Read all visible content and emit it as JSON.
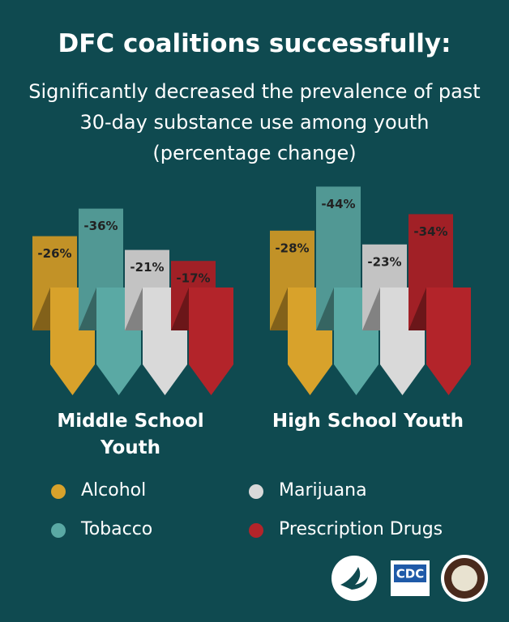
{
  "chart_data": {
    "type": "bar",
    "title": "DFC coalitions successfully:",
    "subtitle": "Significantly decreased the prevalence of past 30-day substance use among youth (percentage change)",
    "categories": [
      "Middle School Youth",
      "High School Youth"
    ],
    "series": [
      {
        "name": "Alcohol",
        "color": "#d8a22b",
        "values": [
          -26,
          -28
        ],
        "value_labels": [
          "-26%",
          "-28%"
        ]
      },
      {
        "name": "Tobacco",
        "color": "#5aa9a4",
        "values": [
          -36,
          -44
        ],
        "value_labels": [
          "-36%",
          "-44%"
        ]
      },
      {
        "name": "Marijuana",
        "color": "#d9d9d9",
        "values": [
          -21,
          -23
        ],
        "value_labels": [
          "-21%",
          "-23%"
        ]
      },
      {
        "name": "Prescription Drugs",
        "color": "#b3242a",
        "values": [
          -17,
          -34
        ],
        "value_labels": [
          "-17%",
          "-34%"
        ]
      }
    ]
  },
  "logos": {
    "cdc": "CDC"
  }
}
